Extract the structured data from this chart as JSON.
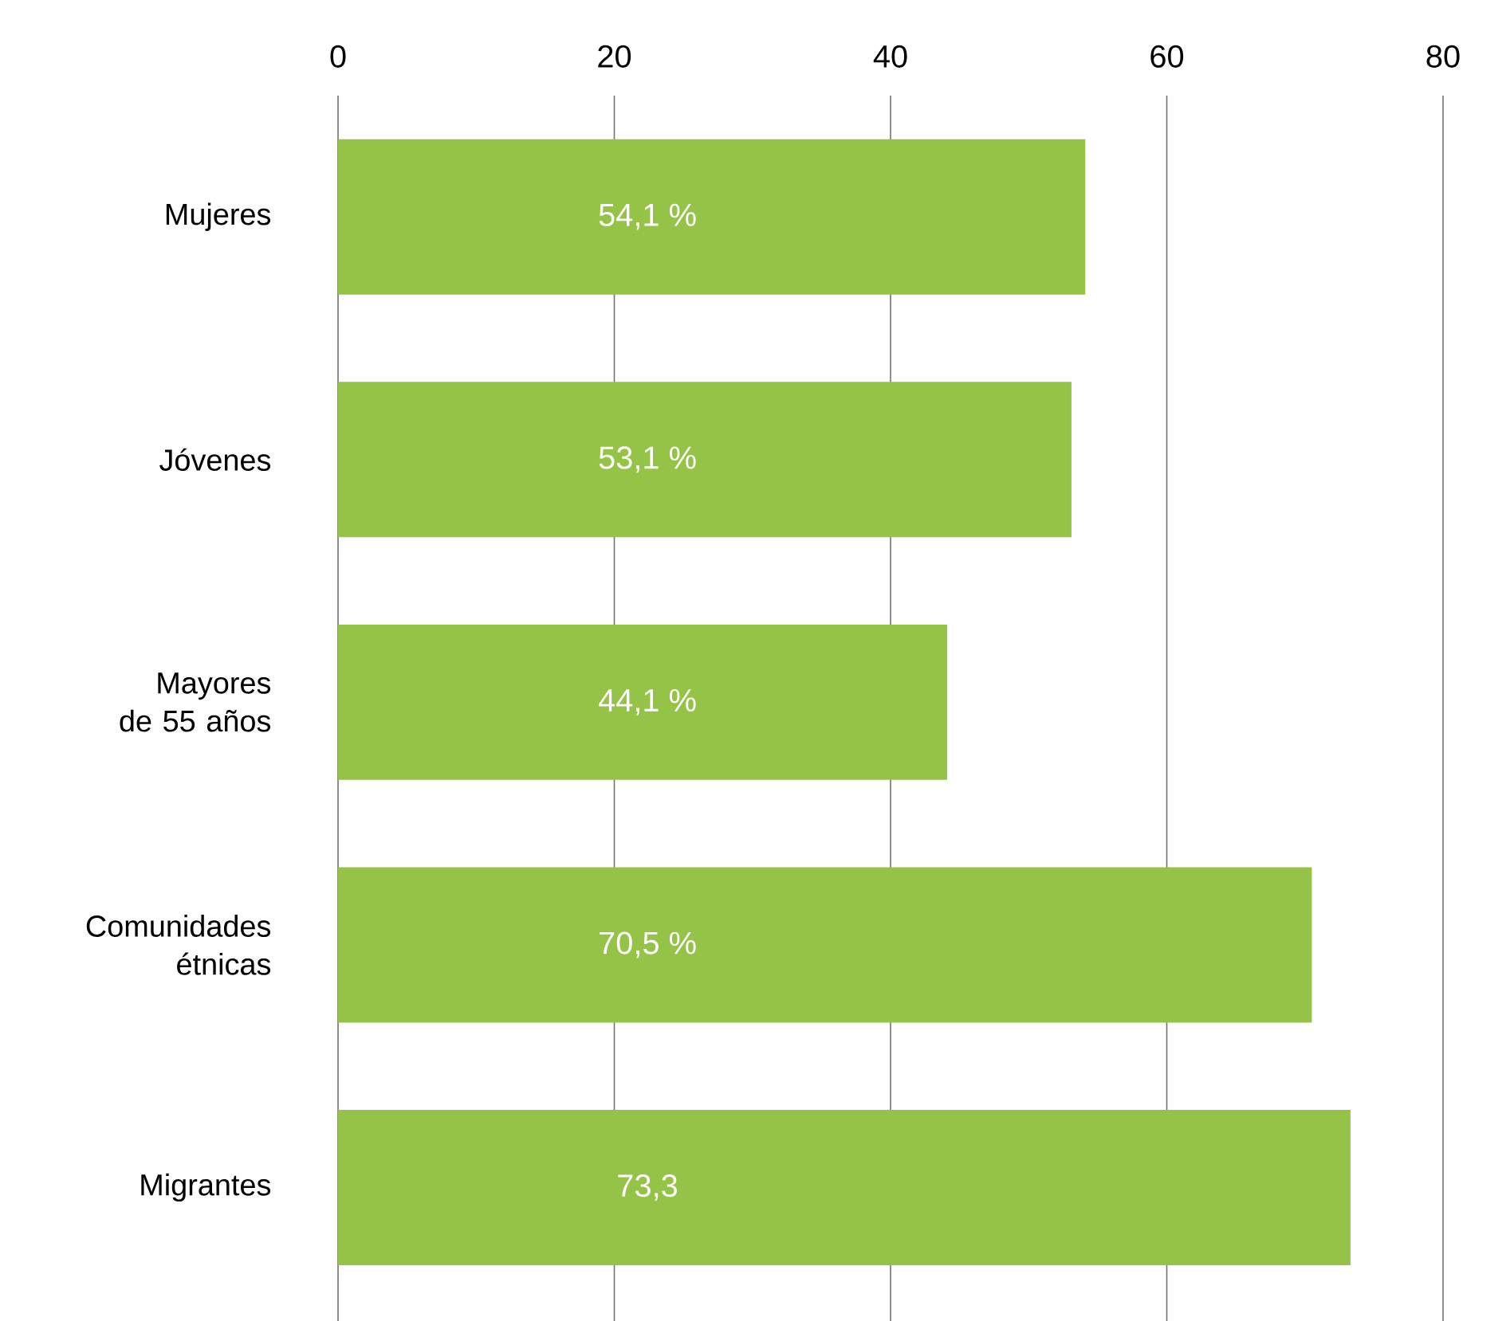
{
  "chart_data": {
    "type": "bar",
    "orientation": "horizontal",
    "categories": [
      "Mujeres",
      "Jóvenes",
      "Mayores de 55 años",
      "Comunidades étnicas",
      "Migrantes"
    ],
    "values": [
      54.1,
      53.1,
      44.1,
      70.5,
      73.3
    ],
    "value_labels": [
      "54,1 %",
      "53,1 %",
      "44,1 %",
      "70,5 %",
      "73,3"
    ],
    "color": "#95c347",
    "xlim": [
      0,
      80
    ],
    "xticks": [
      0,
      20,
      40,
      60,
      80
    ],
    "grid": "x"
  }
}
